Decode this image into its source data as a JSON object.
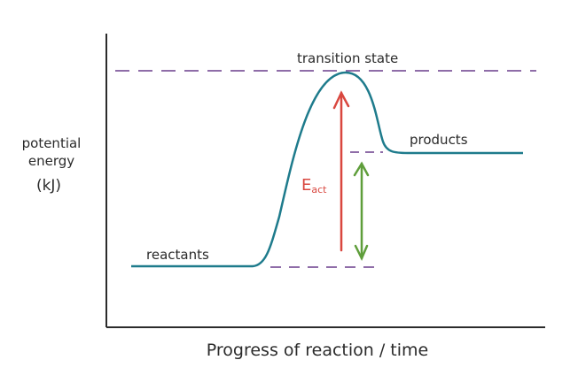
{
  "labels": {
    "transition_state": "transition state",
    "products": "products",
    "reactants": "reactants",
    "y_axis_line1": "potential",
    "y_axis_line2": "energy",
    "y_axis_line3": "(kJ)",
    "x_axis": "Progress of reaction / time",
    "activation_energy_main": "E",
    "activation_energy_sub": "act"
  },
  "colors": {
    "curve": "#1e7b8c",
    "dashed_levels": "#6a3d8c",
    "activation_arrow": "#d9473f",
    "enthalpy_arrow": "#5f9e3b",
    "axes": "#2b2b2b"
  }
}
